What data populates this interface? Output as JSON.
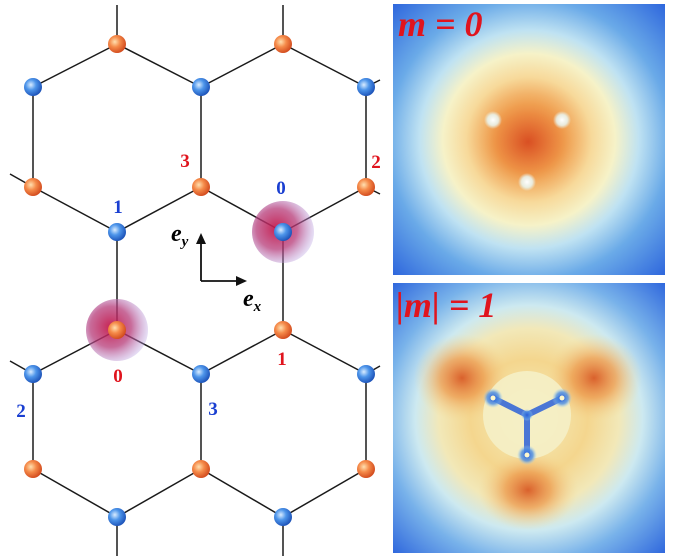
{
  "lattice": {
    "a_site_color": "#e8683a",
    "b_site_color": "#2f78d8",
    "highlight_color": "#d21d3a",
    "labels": [
      {
        "text": "0",
        "color": "#1a3fd1"
      },
      {
        "text": "1",
        "color": "#1a3fd1"
      },
      {
        "text": "2",
        "color": "#1a3fd1"
      },
      {
        "text": "3",
        "color": "#1a3fd1"
      },
      {
        "text": "0",
        "color": "#e0141e"
      },
      {
        "text": "1",
        "color": "#e0141e"
      },
      {
        "text": "2",
        "color": "#e0141e"
      },
      {
        "text": "3",
        "color": "#e0141e"
      }
    ]
  },
  "axes": {
    "ex_label": "e",
    "ex_sub": "x",
    "ey_label": "e",
    "ey_sub": "y"
  },
  "panels": [
    {
      "title_text": "m = 0",
      "title_color": "#e0141e"
    },
    {
      "title_text": "|m| = 1",
      "title_color": "#e0141e"
    }
  ]
}
